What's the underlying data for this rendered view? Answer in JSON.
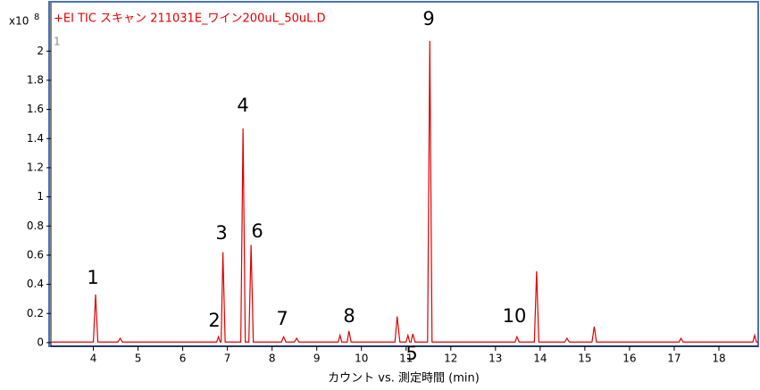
{
  "chart_data": {
    "type": "line",
    "title": "+EI TIC スキャン 211031E_ワイン200uL_50uL.D",
    "panel_number": "1",
    "y_scale_label": "x10",
    "y_scale_exponent": "8",
    "xlabel": "カウント vs. 測定時間 (min)",
    "xlim": [
      3.05,
      18.88
    ],
    "ylim": [
      -0.025,
      2.32
    ],
    "xticks": [
      4,
      5,
      6,
      7,
      8,
      9,
      10,
      11,
      12,
      13,
      14,
      15,
      16,
      17,
      18
    ],
    "yticks": [
      0,
      0.2,
      0.4,
      0.6,
      0.8,
      1,
      1.2,
      1.4,
      1.6,
      1.8,
      2
    ],
    "peak_labels": [
      "1",
      "2",
      "3",
      "4",
      "5",
      "6",
      "7",
      "8",
      "9",
      "10"
    ],
    "series": [
      {
        "color": "#e00000",
        "x": [
          3.05,
          4.0,
          4.05,
          4.1,
          4.55,
          4.6,
          4.65,
          6.76,
          6.8,
          6.84,
          6.86,
          6.9,
          6.95,
          7.3,
          7.35,
          7.4,
          7.48,
          7.53,
          7.58,
          8.21,
          8.26,
          8.31,
          8.5,
          8.55,
          8.6,
          9.48,
          9.52,
          9.56,
          9.68,
          9.72,
          9.77,
          10.75,
          10.8,
          10.86,
          11.0,
          11.04,
          11.08,
          11.11,
          11.15,
          11.2,
          11.48,
          11.53,
          11.58,
          13.44,
          13.48,
          13.53,
          13.87,
          13.92,
          13.97,
          14.55,
          14.6,
          14.65,
          15.16,
          15.21,
          15.26,
          17.11,
          17.15,
          17.2,
          18.76,
          18.8,
          18.84,
          18.88
        ],
        "values": [
          0.004,
          0.004,
          0.33,
          0.004,
          0.004,
          0.03,
          0.004,
          0.004,
          0.04,
          0.004,
          0.004,
          0.62,
          0.004,
          0.004,
          1.47,
          0.004,
          0.004,
          0.67,
          0.004,
          0.004,
          0.04,
          0.004,
          0.004,
          0.03,
          0.004,
          0.004,
          0.05,
          0.004,
          0.004,
          0.08,
          0.004,
          0.004,
          0.18,
          0.004,
          0.004,
          0.05,
          0.004,
          0.004,
          0.06,
          0.004,
          0.004,
          2.07,
          0.004,
          0.004,
          0.04,
          0.004,
          0.004,
          0.49,
          0.004,
          0.004,
          0.03,
          0.004,
          0.004,
          0.11,
          0.004,
          0.004,
          0.03,
          0.004,
          0.004,
          0.05,
          0.004,
          0.004
        ]
      }
    ]
  }
}
